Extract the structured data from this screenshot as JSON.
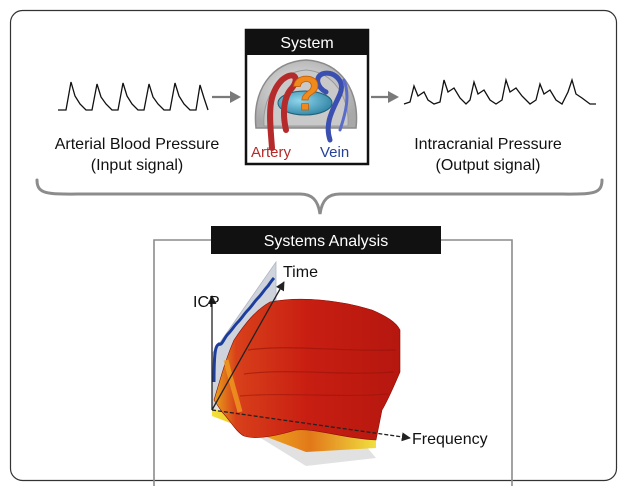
{
  "input": {
    "label": "Arterial Blood Pressure",
    "sublabel": "(Input signal)"
  },
  "output": {
    "label": "Intracranial Pressure",
    "sublabel": "(Output signal)"
  },
  "system": {
    "title": "System",
    "artery_label": "Artery",
    "vein_label": "Vein",
    "question_mark": "?"
  },
  "analysis": {
    "title": "Systems Analysis",
    "axis_icp": "ICP",
    "axis_time": "Time",
    "axis_frequency": "Frequency"
  },
  "colors": {
    "artery": "#b52a2a",
    "vein": "#27409a",
    "question": "#f08a1c",
    "surface": "#c81e12",
    "frame": "#222222"
  }
}
